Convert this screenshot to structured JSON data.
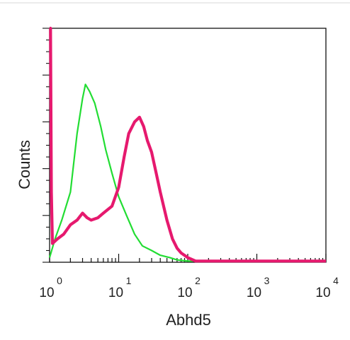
{
  "chart_data": {
    "type": "line",
    "xlabel": "Abhd5",
    "ylabel": "Counts",
    "x_scale": "log",
    "xlim": [
      1,
      10000
    ],
    "x_ticks": [
      {
        "base": "10",
        "exp": "0",
        "value": 1
      },
      {
        "base": "10",
        "exp": "1",
        "value": 10
      },
      {
        "base": "10",
        "exp": "2",
        "value": 100
      },
      {
        "base": "10",
        "exp": "3",
        "value": 1000
      },
      {
        "base": "10",
        "exp": "4",
        "value": 10000
      }
    ],
    "ylim": [
      0,
      100
    ],
    "grid": false,
    "legend": "none",
    "series": [
      {
        "color": "#22dd33",
        "x": [
          1,
          1.2,
          1.5,
          2,
          2.5,
          3,
          3.3,
          3.8,
          4.5,
          5.5,
          6.5,
          8,
          10,
          13,
          17,
          22,
          30,
          40,
          55,
          70,
          100,
          10000
        ],
        "y": [
          2,
          10,
          18,
          30,
          55,
          70,
          76,
          73,
          68,
          58,
          48,
          38,
          28,
          20,
          12,
          7,
          5,
          3,
          2,
          1,
          0.5,
          0.5
        ]
      },
      {
        "color": "#e6196e",
        "x": [
          1,
          1.03,
          1.06,
          1.1,
          1.3,
          1.6,
          2,
          2.5,
          3,
          3.5,
          4,
          5,
          6,
          8,
          10,
          12,
          14,
          17,
          20,
          23,
          26,
          30,
          35,
          40,
          50,
          60,
          70,
          80,
          100,
          130,
          10000
        ],
        "y": [
          100,
          100,
          30,
          8,
          10,
          12,
          16,
          18,
          21,
          19,
          18,
          19,
          21,
          24,
          32,
          45,
          55,
          60,
          62,
          58,
          52,
          47,
          38,
          30,
          18,
          10,
          6,
          4,
          2,
          0.5,
          0.5
        ]
      }
    ]
  }
}
